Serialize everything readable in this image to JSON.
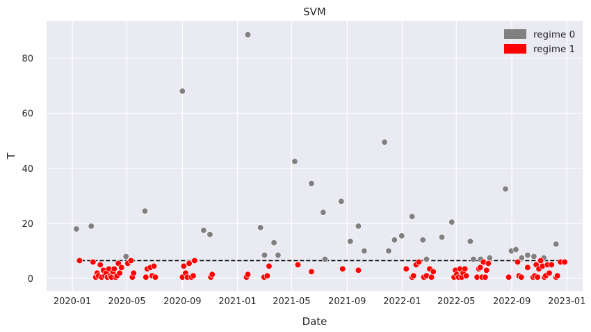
{
  "chart_data": {
    "type": "scatter",
    "title": "SVM",
    "xlabel": "Date",
    "ylabel": "T",
    "xlim": [
      "2019-11-05",
      "2023-02-05"
    ],
    "ylim": [
      -4.5,
      93.5
    ],
    "x_ticks": [
      "2020-01",
      "2020-05",
      "2020-09",
      "2021-01",
      "2021-05",
      "2021-09",
      "2022-01",
      "2022-05",
      "2022-09",
      "2023-01"
    ],
    "y_ticks": [
      0,
      20,
      40,
      60,
      80
    ],
    "grid": true,
    "legend_position": "top-right",
    "threshold": {
      "value": 6.5,
      "x_start": "2020-01-20",
      "x_end": "2022-12-29",
      "style": "dashed",
      "color": "#000000"
    },
    "series": [
      {
        "name": "regime 0",
        "color": "#808080",
        "points": [
          [
            "2020-01-10",
            18.0
          ],
          [
            "2020-02-12",
            19.0
          ],
          [
            "2020-04-29",
            8.0
          ],
          [
            "2020-06-10",
            24.5
          ],
          [
            "2020-09-01",
            68.0
          ],
          [
            "2020-10-18",
            17.5
          ],
          [
            "2020-11-01",
            16.0
          ],
          [
            "2021-01-24",
            88.5
          ],
          [
            "2021-02-21",
            18.5
          ],
          [
            "2021-03-02",
            8.5
          ],
          [
            "2021-03-23",
            13.0
          ],
          [
            "2021-04-01",
            8.5
          ],
          [
            "2021-05-08",
            42.5
          ],
          [
            "2021-06-14",
            34.5
          ],
          [
            "2021-07-10",
            24.0
          ],
          [
            "2021-07-14",
            7.0
          ],
          [
            "2021-08-19",
            28.0
          ],
          [
            "2021-09-08",
            13.5
          ],
          [
            "2021-09-26",
            19.0
          ],
          [
            "2021-10-09",
            10.0
          ],
          [
            "2021-11-23",
            49.5
          ],
          [
            "2021-12-02",
            10.0
          ],
          [
            "2021-12-15",
            14.0
          ],
          [
            "2021-12-31",
            15.5
          ],
          [
            "2022-01-23",
            22.5
          ],
          [
            "2022-02-16",
            14.0
          ],
          [
            "2022-02-24",
            7.0
          ],
          [
            "2022-03-30",
            15.0
          ],
          [
            "2022-04-21",
            20.5
          ],
          [
            "2022-06-01",
            13.5
          ],
          [
            "2022-06-08",
            7.0
          ],
          [
            "2022-06-24",
            7.0
          ],
          [
            "2022-07-14",
            7.5
          ],
          [
            "2022-08-18",
            32.5
          ],
          [
            "2022-08-31",
            10.0
          ],
          [
            "2022-09-10",
            10.5
          ],
          [
            "2022-09-23",
            7.5
          ],
          [
            "2022-10-06",
            8.5
          ],
          [
            "2022-10-20",
            8.0
          ],
          [
            "2022-11-11",
            7.5
          ],
          [
            "2022-12-08",
            12.5
          ]
        ]
      },
      {
        "name": "regime 1",
        "color": "#ff0000",
        "points": [
          [
            "2020-01-17",
            6.5
          ],
          [
            "2020-02-16",
            6.0
          ],
          [
            "2020-02-22",
            0.5
          ],
          [
            "2020-02-25",
            2.0
          ],
          [
            "2020-02-28",
            1.0
          ],
          [
            "2020-03-03",
            5.0
          ],
          [
            "2020-03-06",
            0.5
          ],
          [
            "2020-03-10",
            3.0
          ],
          [
            "2020-03-13",
            1.0
          ],
          [
            "2020-03-16",
            2.0
          ],
          [
            "2020-03-19",
            0.5
          ],
          [
            "2020-03-22",
            3.5
          ],
          [
            "2020-03-25",
            1.0
          ],
          [
            "2020-03-28",
            0.5
          ],
          [
            "2020-03-31",
            2.5
          ],
          [
            "2020-04-03",
            3.5
          ],
          [
            "2020-04-06",
            0.5
          ],
          [
            "2020-04-09",
            1.0
          ],
          [
            "2020-04-12",
            5.5
          ],
          [
            "2020-04-15",
            2.0
          ],
          [
            "2020-04-19",
            4.0
          ],
          [
            "2020-05-03",
            5.5
          ],
          [
            "2020-05-10",
            6.5
          ],
          [
            "2020-05-13",
            0.5
          ],
          [
            "2020-05-16",
            2.0
          ],
          [
            "2020-06-12",
            0.5
          ],
          [
            "2020-06-15",
            3.5
          ],
          [
            "2020-06-22",
            4.0
          ],
          [
            "2020-06-26",
            1.0
          ],
          [
            "2020-06-30",
            4.5
          ],
          [
            "2020-07-03",
            0.5
          ],
          [
            "2020-09-01",
            0.5
          ],
          [
            "2020-09-04",
            4.5
          ],
          [
            "2020-09-08",
            2.0
          ],
          [
            "2020-09-12",
            0.5
          ],
          [
            "2020-09-16",
            5.5
          ],
          [
            "2020-09-21",
            0.5
          ],
          [
            "2020-09-25",
            1.0
          ],
          [
            "2020-09-28",
            6.5
          ],
          [
            "2020-11-03",
            0.5
          ],
          [
            "2020-11-06",
            1.5
          ],
          [
            "2021-01-21",
            0.5
          ],
          [
            "2021-01-24",
            1.5
          ],
          [
            "2021-03-01",
            0.5
          ],
          [
            "2021-03-08",
            1.0
          ],
          [
            "2021-03-12",
            4.5
          ],
          [
            "2021-05-15",
            5.0
          ],
          [
            "2021-06-14",
            2.5
          ],
          [
            "2021-08-22",
            3.5
          ],
          [
            "2021-09-26",
            3.0
          ],
          [
            "2022-01-10",
            3.5
          ],
          [
            "2022-01-23",
            0.5
          ],
          [
            "2022-01-26",
            1.0
          ],
          [
            "2022-02-01",
            5.0
          ],
          [
            "2022-02-07",
            6.0
          ],
          [
            "2022-02-18",
            0.5
          ],
          [
            "2022-02-24",
            1.0
          ],
          [
            "2022-03-03",
            3.5
          ],
          [
            "2022-03-07",
            0.5
          ],
          [
            "2022-03-11",
            2.5
          ],
          [
            "2022-04-26",
            0.5
          ],
          [
            "2022-04-29",
            3.0
          ],
          [
            "2022-05-02",
            1.5
          ],
          [
            "2022-05-06",
            0.5
          ],
          [
            "2022-05-09",
            3.5
          ],
          [
            "2022-05-13",
            0.5
          ],
          [
            "2022-05-16",
            2.0
          ],
          [
            "2022-05-20",
            3.5
          ],
          [
            "2022-05-23",
            1.0
          ],
          [
            "2022-06-16",
            0.5
          ],
          [
            "2022-06-20",
            3.5
          ],
          [
            "2022-06-23",
            4.0
          ],
          [
            "2022-06-27",
            0.5
          ],
          [
            "2022-06-30",
            6.0
          ],
          [
            "2022-07-04",
            0.5
          ],
          [
            "2022-07-07",
            3.0
          ],
          [
            "2022-07-11",
            5.5
          ],
          [
            "2022-08-25",
            0.5
          ],
          [
            "2022-09-14",
            6.0
          ],
          [
            "2022-09-17",
            1.0
          ],
          [
            "2022-09-22",
            0.5
          ],
          [
            "2022-10-06",
            4.0
          ],
          [
            "2022-10-18",
            0.5
          ],
          [
            "2022-10-22",
            1.0
          ],
          [
            "2022-10-25",
            5.0
          ],
          [
            "2022-10-28",
            0.5
          ],
          [
            "2022-10-31",
            3.5
          ],
          [
            "2022-11-04",
            6.5
          ],
          [
            "2022-11-08",
            4.5
          ],
          [
            "2022-11-12",
            0.5
          ],
          [
            "2022-11-15",
            1.0
          ],
          [
            "2022-11-19",
            5.0
          ],
          [
            "2022-11-23",
            2.0
          ],
          [
            "2022-11-28",
            5.0
          ],
          [
            "2022-12-08",
            0.5
          ],
          [
            "2022-12-11",
            1.0
          ],
          [
            "2022-12-18",
            6.0
          ],
          [
            "2022-12-27",
            6.0
          ]
        ]
      }
    ]
  }
}
